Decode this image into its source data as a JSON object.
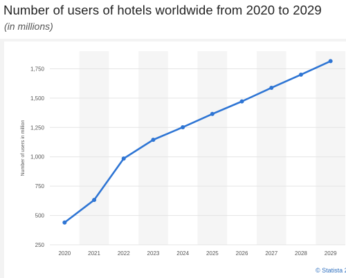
{
  "chart_data": {
    "type": "line",
    "title": "Number of users of hotels worldwide from 2020 to 2029",
    "subtitle": "(in millions)",
    "xlabel": "",
    "ylabel": "Number of users in million",
    "categories": [
      "2020",
      "2021",
      "2022",
      "2023",
      "2024",
      "2025",
      "2026",
      "2027",
      "2028",
      "2029"
    ],
    "series": [
      {
        "values": [
          440,
          632,
          985,
          1145,
          1252,
          1365,
          1472,
          1588,
          1700,
          1815
        ]
      }
    ],
    "ylim": [
      250,
      1900
    ],
    "yticks": [
      250,
      500,
      750,
      1000,
      1250,
      1500,
      1750
    ],
    "ytick_labels": [
      "250",
      "500",
      "750",
      "1,000",
      "1,250",
      "1,500",
      "1,750"
    ],
    "grid": true,
    "legend": "none",
    "colors": {
      "line": "#2e75d4",
      "band": "#f5f5f5",
      "grid": "#e4e4e4",
      "tick_text": "#555555"
    }
  },
  "credit": "© Statista 2"
}
